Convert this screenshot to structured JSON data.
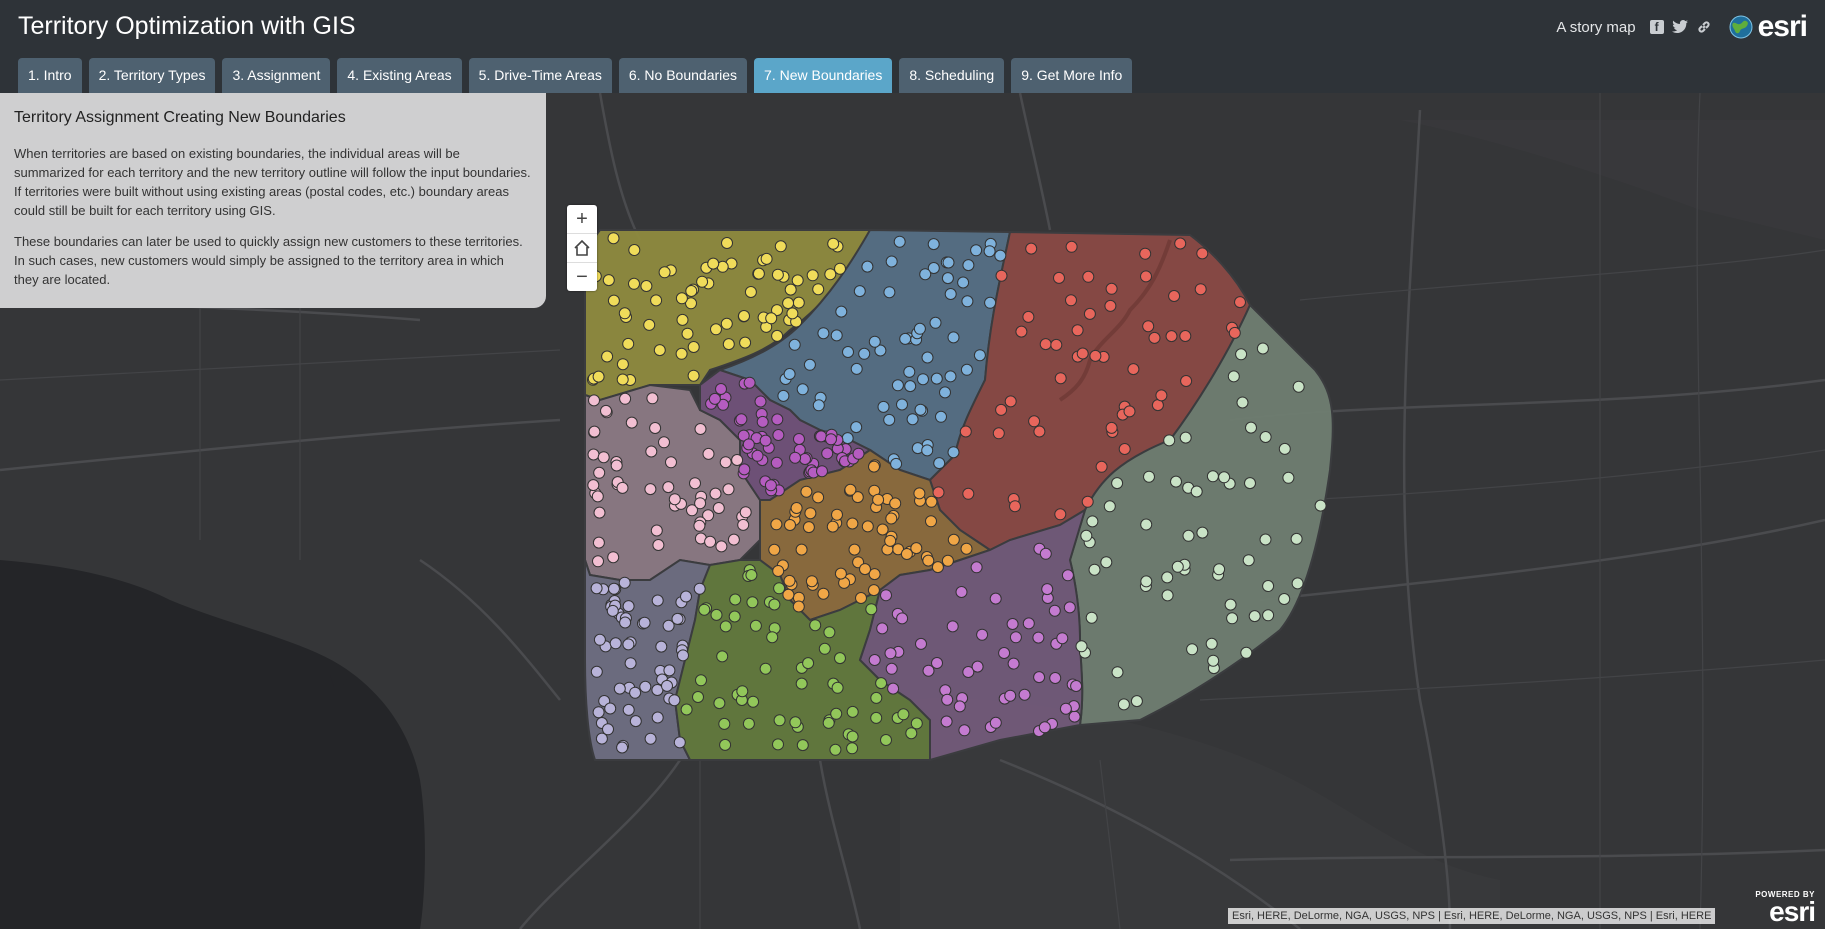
{
  "header": {
    "title": "Territory Optimization with GIS",
    "story_label": "A story map",
    "brand": "esri"
  },
  "tabs": [
    {
      "label": "1. Intro"
    },
    {
      "label": "2. Territory Types"
    },
    {
      "label": "3. Assignment"
    },
    {
      "label": "4. Existing Areas"
    },
    {
      "label": "5. Drive-Time Areas"
    },
    {
      "label": "6. No Boundaries"
    },
    {
      "label": "7. New Boundaries",
      "active": true
    },
    {
      "label": "8. Scheduling"
    },
    {
      "label": "9. Get More Info"
    }
  ],
  "panel": {
    "title": "Territory Assignment Creating New Boundaries",
    "paragraphs": [
      "When territories are based on existing boundaries, the individual areas will be summarized for each territory and the new territory outline will follow the input boundaries. If territories were built without using existing areas (postal codes, etc.) boundary areas could still be built for each territory using GIS.",
      "These boundaries can later be used to quickly assign new customers to these territories. In such cases, new customers would simply be assigned to the territory area in which they are located."
    ]
  },
  "map": {
    "zoom_in": "+",
    "zoom_out": "−",
    "attribution": "Esri, HERE, DeLorme, NGA, USGS, NPS | Esri, HERE, DeLorme, NGA, USGS, NPS | Esri, HERE",
    "powered_by": "POWERED BY",
    "powered_brand": "esri",
    "territories": [
      {
        "name": "yellow",
        "fill": "#8f8b3f",
        "point": "#f0dc5a"
      },
      {
        "name": "blue",
        "fill": "#566f85",
        "point": "#7fb2dc"
      },
      {
        "name": "red",
        "fill": "#8a4a45",
        "point": "#e8665c"
      },
      {
        "name": "sage",
        "fill": "#6f7e71",
        "point": "#c9e3c6"
      },
      {
        "name": "pink",
        "fill": "#8c7a84",
        "point": "#f2bfd2"
      },
      {
        "name": "magenta",
        "fill": "#71527a",
        "point": "#b55cc0"
      },
      {
        "name": "orange",
        "fill": "#8d6c3e",
        "point": "#f0a646"
      },
      {
        "name": "lavender",
        "fill": "#6e6e82",
        "point": "#b8b3d9"
      },
      {
        "name": "green",
        "fill": "#637a3e",
        "point": "#92c75a"
      },
      {
        "name": "purple",
        "fill": "#725a7a",
        "point": "#c47bd0"
      }
    ]
  }
}
